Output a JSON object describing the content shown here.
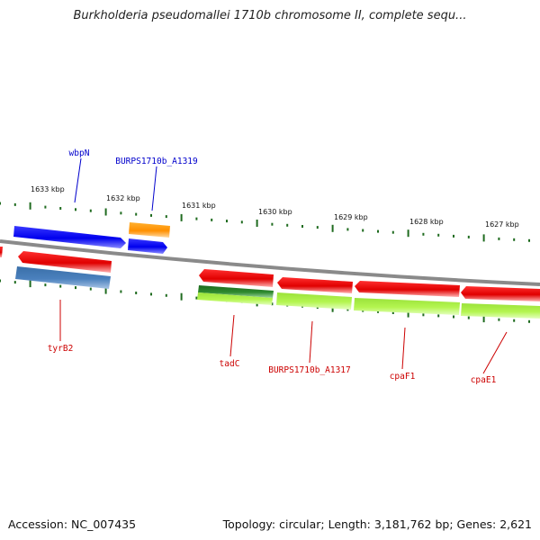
{
  "title": "Burkholderia pseudomallei 1710b chromosome II, complete sequ...",
  "footer": {
    "accession": "Accession: NC_007435",
    "summary": "Topology: circular; Length: 3,181,762 bp; Genes: 2,621"
  },
  "colors": {
    "backbone": "#8a8a8a",
    "tick": "#1f6b1f",
    "plus_label": "#0000cc",
    "minus_label": "#cc0000"
  },
  "ticks": [
    {
      "label": "1633 kbp"
    },
    {
      "label": "1632 kbp"
    },
    {
      "label": "1631 kbp"
    },
    {
      "label": "1630 kbp"
    },
    {
      "label": "1629 kbp"
    },
    {
      "label": "1628 kbp"
    },
    {
      "label": "1627 kbp"
    }
  ],
  "labels": {
    "wbpN": "wbpN",
    "a1319": "BURPS1710b_A1319",
    "tyrB2": "tyrB2",
    "tadC": "tadC",
    "a1317": "BURPS1710b_A1317",
    "cpaF1": "cpaF1",
    "cpaE1": "cpaE1"
  }
}
